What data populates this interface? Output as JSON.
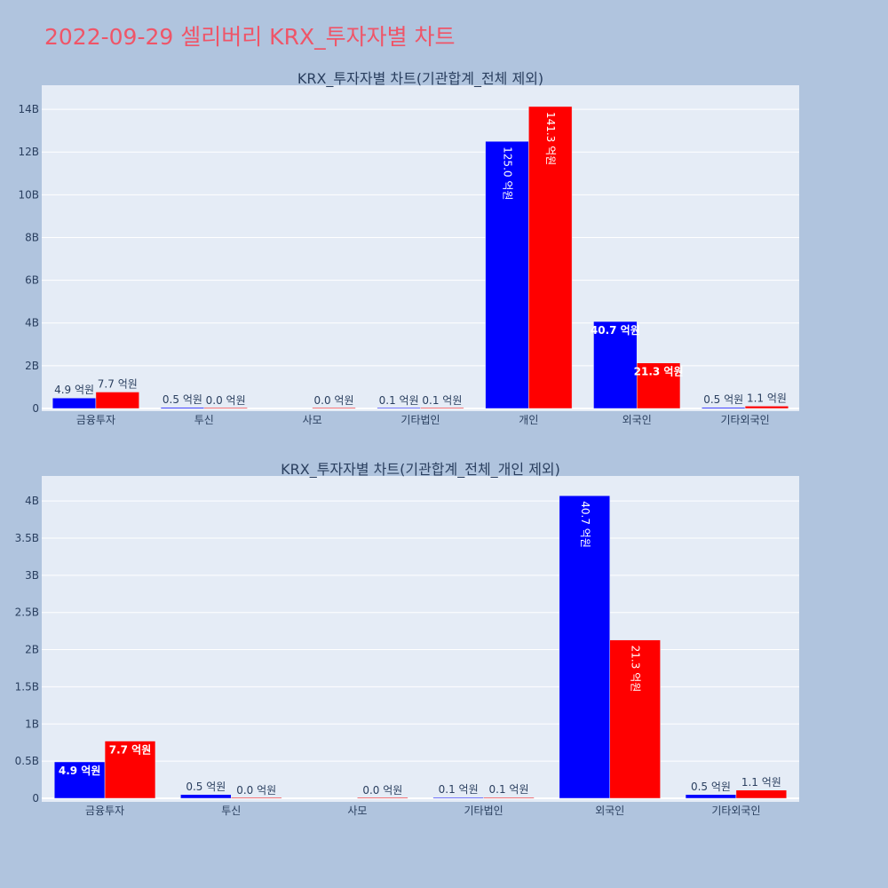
{
  "page_title": "2022-09-29 셀리버리 KRX_투자자별 차트",
  "colors": {
    "buy": "#0000ff",
    "sell": "#ff0000",
    "plot_bg": "#e5ecf6",
    "page_bg": "#b0c4de",
    "title": "#ef5568"
  },
  "chart_data": [
    {
      "type": "bar",
      "title": "KRX_투자자별 차트(기관합계_전체 제외)",
      "categories": [
        "금융투자",
        "투신",
        "사모",
        "기타법인",
        "개인",
        "외국인",
        "기타외국인"
      ],
      "series": [
        {
          "color": "#0000ff",
          "values": [
            490000000,
            50000000,
            null,
            10000000,
            12500000000,
            4070000000,
            50000000
          ],
          "labels": [
            "4.9 억원",
            "0.5 억원",
            "",
            "0.1 억원",
            "125.0 억원",
            "40.7 억원",
            "0.5 억원"
          ]
        },
        {
          "color": "#ff0000",
          "values": [
            770000000,
            0,
            0,
            10000000,
            14130000000,
            2130000000,
            110000000
          ],
          "labels": [
            "7.7 억원",
            "0.0 억원",
            "0.0 억원",
            "0.1 억원",
            "141.3 억원",
            "21.3 억원",
            "1.1 억원"
          ]
        }
      ],
      "yrange": [
        0,
        15000000000
      ],
      "yticks": [
        0,
        2000000000,
        4000000000,
        6000000000,
        8000000000,
        10000000000,
        12000000000,
        14000000000
      ],
      "ytick_labels": [
        "0",
        "2B",
        "4B",
        "6B",
        "8B",
        "10B",
        "12B",
        "14B"
      ],
      "grid": true
    },
    {
      "type": "bar",
      "title": "KRX_투자자별 차트(기관합계_전체_개인 제외)",
      "categories": [
        "금융투자",
        "투신",
        "사모",
        "기타법인",
        "외국인",
        "기타외국인"
      ],
      "series": [
        {
          "color": "#0000ff",
          "values": [
            490000000,
            50000000,
            null,
            10000000,
            4070000000,
            50000000
          ],
          "labels": [
            "4.9 억원",
            "0.5 억원",
            "",
            "0.1 억원",
            "40.7 억원",
            "0.5 억원"
          ]
        },
        {
          "color": "#ff0000",
          "values": [
            770000000,
            0,
            0,
            10000000,
            2130000000,
            110000000
          ],
          "labels": [
            "7.7 억원",
            "0.0 억원",
            "0.0 억원",
            "0.1 억원",
            "21.3 억원",
            "1.1 억원"
          ]
        }
      ],
      "yrange": [
        0,
        4300000000
      ],
      "yticks": [
        0,
        500000000,
        1000000000,
        1500000000,
        2000000000,
        2500000000,
        3000000000,
        3500000000,
        4000000000
      ],
      "ytick_labels": [
        "0",
        "0.5B",
        "1B",
        "1.5B",
        "2B",
        "2.5B",
        "3B",
        "3.5B",
        "4B"
      ],
      "grid": true
    }
  ]
}
